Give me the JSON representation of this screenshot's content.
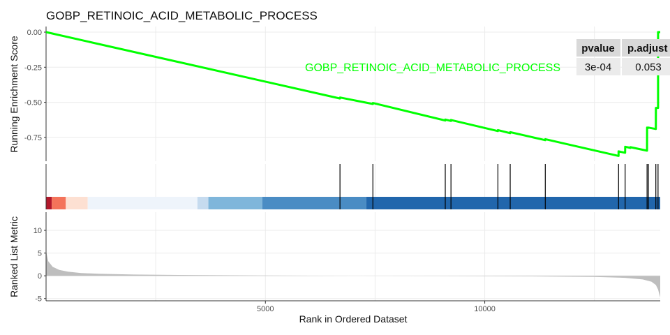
{
  "chart_data": {
    "type": "line",
    "title": "GOBP_RETINOIC_ACID_METABOLIC_PROCESS",
    "xlabel": "Rank in Ordered Dataset",
    "xlim": [
      0,
      14000
    ],
    "x_ticks": [
      5000,
      10000
    ],
    "x_tick_labels": [
      "5000",
      "10000"
    ],
    "colors": {
      "es_line": "#00ff00",
      "hit_tick": "#000000",
      "metric_area": "#bebebe",
      "grid": "#ebebeb",
      "table_header_bg": "#d9d9d9",
      "table_body_bg": "#ebebeb"
    },
    "panels": [
      {
        "name": "running-enrichment",
        "ylabel": "Running Enrichment Score",
        "ylim": [
          -0.92,
          0.04
        ],
        "y_ticks": [
          0.0,
          -0.25,
          -0.5,
          -0.75
        ],
        "y_tick_labels": [
          "0.00",
          "-0.25",
          "-0.50",
          "-0.75"
        ],
        "series": [
          {
            "name": "GOBP_RETINOIC_ACID_METABOLIC_PROCESS",
            "color": "#00ff00",
            "x": [
              0,
              6700,
              6701,
              7450,
              7451,
              9100,
              9101,
              9230,
              9231,
              10300,
              10301,
              10580,
              10581,
              11380,
              11381,
              13050,
              13051,
              13200,
              13201,
              13320,
              13321,
              13700,
              13701,
              13730,
              13731,
              13900,
              13901,
              13950,
              13951,
              14000
            ],
            "y": [
              0.0,
              -0.473,
              -0.466,
              -0.512,
              -0.505,
              -0.63,
              -0.623,
              -0.633,
              -0.626,
              -0.705,
              -0.698,
              -0.72,
              -0.713,
              -0.77,
              -0.763,
              -0.882,
              -0.85,
              -0.86,
              -0.817,
              -0.825,
              -0.82,
              -0.845,
              -0.68,
              -0.682,
              -0.68,
              -0.69,
              -0.54,
              -0.54,
              0.0,
              0.0
            ]
          }
        ],
        "annotation": {
          "text": "GOBP_RETINOIC_ACID_METABOLIC_PROCESS",
          "color": "#00ff00"
        }
      },
      {
        "name": "gene-hits",
        "hits": [
          6700,
          7450,
          9100,
          9230,
          10300,
          10580,
          11380,
          13050,
          13200,
          13700,
          13730,
          13900,
          13950
        ],
        "rank_color_bands": [
          {
            "from": 0,
            "to": 130,
            "color": "#b2182b"
          },
          {
            "from": 130,
            "to": 450,
            "color": "#f4735a"
          },
          {
            "from": 450,
            "to": 950,
            "color": "#fde0d2"
          },
          {
            "from": 950,
            "to": 3450,
            "color": "#eef4fb"
          },
          {
            "from": 3450,
            "to": 3700,
            "color": "#c6dbef"
          },
          {
            "from": 3700,
            "to": 4930,
            "color": "#7fb6db"
          },
          {
            "from": 4930,
            "to": 7300,
            "color": "#4a8cc4"
          },
          {
            "from": 7300,
            "to": 14000,
            "color": "#2166ac"
          }
        ]
      },
      {
        "name": "ranked-list-metric",
        "ylabel": "Ranked List Metric",
        "ylim": [
          -5.5,
          14
        ],
        "y_ticks": [
          10,
          5,
          0,
          -5
        ],
        "y_tick_labels": [
          "10",
          "5",
          "0",
          "-5"
        ],
        "metric_curve": {
          "x": [
            0,
            50,
            150,
            300,
            500,
            800,
            1200,
            2000,
            3000,
            5000,
            7000,
            9000,
            11000,
            12500,
            13200,
            13600,
            13800,
            13900,
            13950,
            14000
          ],
          "y": [
            5.5,
            3.2,
            2.0,
            1.3,
            0.9,
            0.6,
            0.45,
            0.28,
            0.18,
            0.08,
            0.0,
            -0.05,
            -0.12,
            -0.25,
            -0.45,
            -0.8,
            -1.3,
            -2.0,
            -3.0,
            -4.8
          ]
        }
      }
    ],
    "table": {
      "headers": [
        "pvalue",
        "p.adjust"
      ],
      "row": [
        "3e-04",
        "0.053"
      ]
    }
  }
}
